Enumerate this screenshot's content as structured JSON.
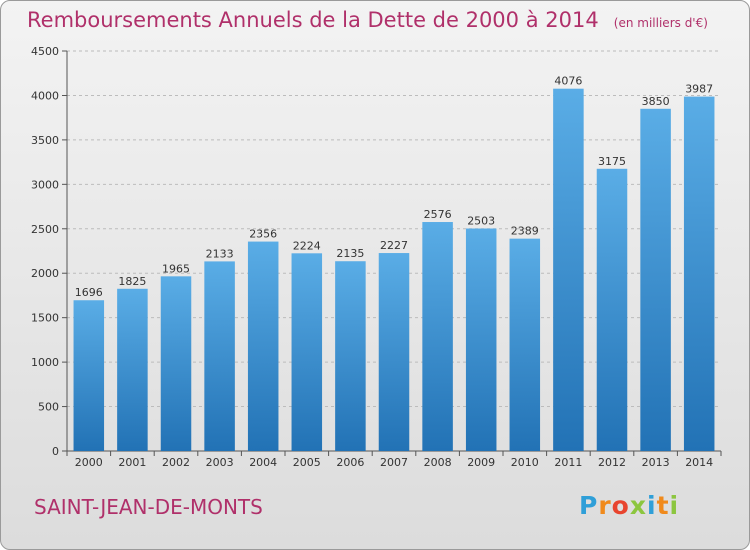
{
  "chart_data": {
    "type": "bar",
    "title": "Remboursements Annuels de la Dette de 2000 à 2014",
    "subtitle": "(en milliers d'€)",
    "categories": [
      "2000",
      "2001",
      "2002",
      "2003",
      "2004",
      "2005",
      "2006",
      "2007",
      "2008",
      "2009",
      "2010",
      "2011",
      "2012",
      "2013",
      "2014"
    ],
    "values": [
      1696,
      1825,
      1965,
      2133,
      2356,
      2224,
      2135,
      2227,
      2576,
      2503,
      2389,
      4076,
      3175,
      3850,
      3987
    ],
    "ylim": [
      0,
      4500
    ],
    "yticks": [
      0,
      500,
      1000,
      1500,
      2000,
      2500,
      3000,
      3500,
      4000,
      4500
    ],
    "grid": true,
    "bar_color_top": "#5aade6",
    "bar_color_bottom": "#2272b5",
    "grid_color": "#bcbcbc"
  },
  "footer": {
    "city": "SAINT-JEAN-DE-MONTS",
    "brand_letters": [
      {
        "ch": "P",
        "color": "#2f9fd8"
      },
      {
        "ch": "r",
        "color": "#f08a1c"
      },
      {
        "ch": "o",
        "color": "#e8442e"
      },
      {
        "ch": "x",
        "color": "#8cc63f"
      },
      {
        "ch": "i",
        "color": "#2f9fd8"
      },
      {
        "ch": "t",
        "color": "#f08a1c"
      },
      {
        "ch": "i",
        "color": "#8cc63f"
      }
    ]
  },
  "colors": {
    "title": "#b0306a"
  }
}
